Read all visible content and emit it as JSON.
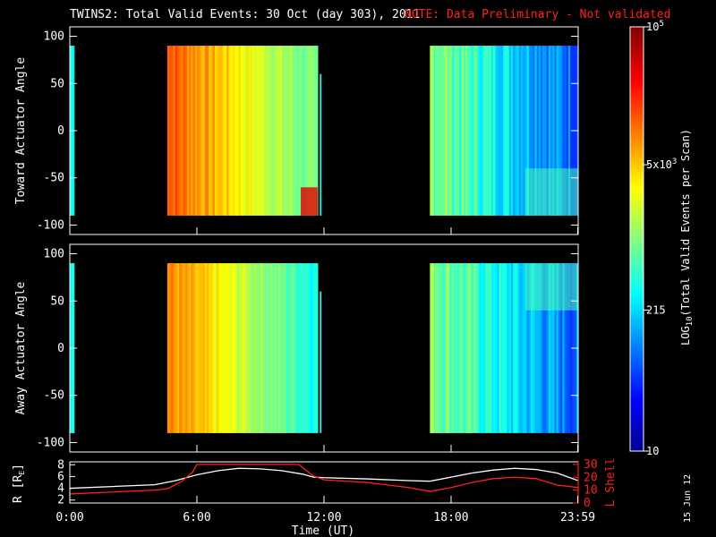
{
  "title": "TWINS2: Total Valid Events: 30 Oct (day 303), 2011",
  "note": "NOTE: Data Preliminary - Not validated",
  "date_stamp": "15 Jun 12",
  "colors": {
    "background": "#000000",
    "axis": "#ffffff",
    "note": "#ff2020",
    "r_line": "#ffffff",
    "lshell_line": "#ff2020"
  },
  "chart_data": [
    {
      "type": "heatmap",
      "ylabel": "Toward Actuator Angle",
      "ylim": [
        -110,
        110
      ],
      "yticks": [
        100,
        50,
        0,
        -50,
        -100
      ],
      "xlim": [
        0,
        24
      ],
      "data_blocks_hours": [
        [
          0,
          0.2
        ],
        [
          4.6,
          11.7
        ],
        [
          17.0,
          24.0
        ]
      ],
      "log_counts_range": [
        1,
        5
      ]
    },
    {
      "type": "heatmap",
      "ylabel": "Away Actuator Angle",
      "ylim": [
        -110,
        110
      ],
      "yticks": [
        100,
        50,
        0,
        -50,
        -100
      ],
      "xlim": [
        0,
        24
      ],
      "data_blocks_hours": [
        [
          0,
          0.2
        ],
        [
          4.6,
          11.7
        ],
        [
          17.0,
          24.0
        ]
      ],
      "log_counts_range": [
        1,
        5
      ]
    },
    {
      "type": "line",
      "ylabel_left": "R [RE]",
      "ylabel_left_base": "R [R",
      "ylabel_left_sub": "E",
      "ylabel_left_end": "]",
      "ylabel_right": "L Shell",
      "xlabel": "Time (UT)",
      "xticks": [
        "0:00",
        "6:00",
        "12:00",
        "18:00",
        "23:59"
      ],
      "xtick_hours": [
        0,
        6,
        12,
        18,
        23.98
      ],
      "left_yticks": [
        "8",
        "6",
        "4",
        "2"
      ],
      "left_ylim": [
        1.5,
        8.5
      ],
      "right_yticks": [
        "30",
        "20",
        "10",
        "0"
      ],
      "right_ylim": [
        0,
        32
      ],
      "series": [
        {
          "name": "R",
          "x": [
            0,
            2,
            4,
            5,
            6,
            7,
            8,
            9,
            10,
            11,
            11.5,
            12,
            14,
            16,
            17,
            18,
            19,
            20,
            21,
            22,
            23,
            24
          ],
          "values": [
            4.0,
            4.3,
            4.6,
            5.3,
            6.3,
            7.0,
            7.4,
            7.3,
            7.0,
            6.4,
            5.9,
            5.8,
            5.6,
            5.3,
            5.2,
            5.9,
            6.6,
            7.1,
            7.4,
            7.2,
            6.6,
            5.3
          ]
        },
        {
          "name": "L Shell",
          "x": [
            0,
            2,
            4,
            4.6,
            5.3,
            5.8,
            6.0,
            10.8,
            11.5,
            12,
            14,
            16,
            17,
            18,
            19,
            20,
            21,
            22,
            23,
            24
          ],
          "values": [
            7,
            8.5,
            10,
            11,
            17,
            24,
            30,
            30,
            21,
            18,
            16,
            12,
            9,
            12,
            16,
            19,
            20,
            19,
            14,
            12
          ]
        }
      ]
    }
  ],
  "colorbar": {
    "label": "LOG10(Total Valid Events per Scan)",
    "label_base": "LOG",
    "label_sub": "10",
    "label_rest": "(Total Valid Events per Scan)",
    "ticks": [
      {
        "base": "10",
        "exp": "5",
        "log": 5
      },
      {
        "base": "5x10",
        "exp": "3",
        "log": 3.7
      },
      {
        "base": "215",
        "exp": "",
        "log": 2.33
      },
      {
        "base": "10",
        "exp": "",
        "log": 1
      }
    ],
    "range": [
      1,
      5
    ]
  }
}
